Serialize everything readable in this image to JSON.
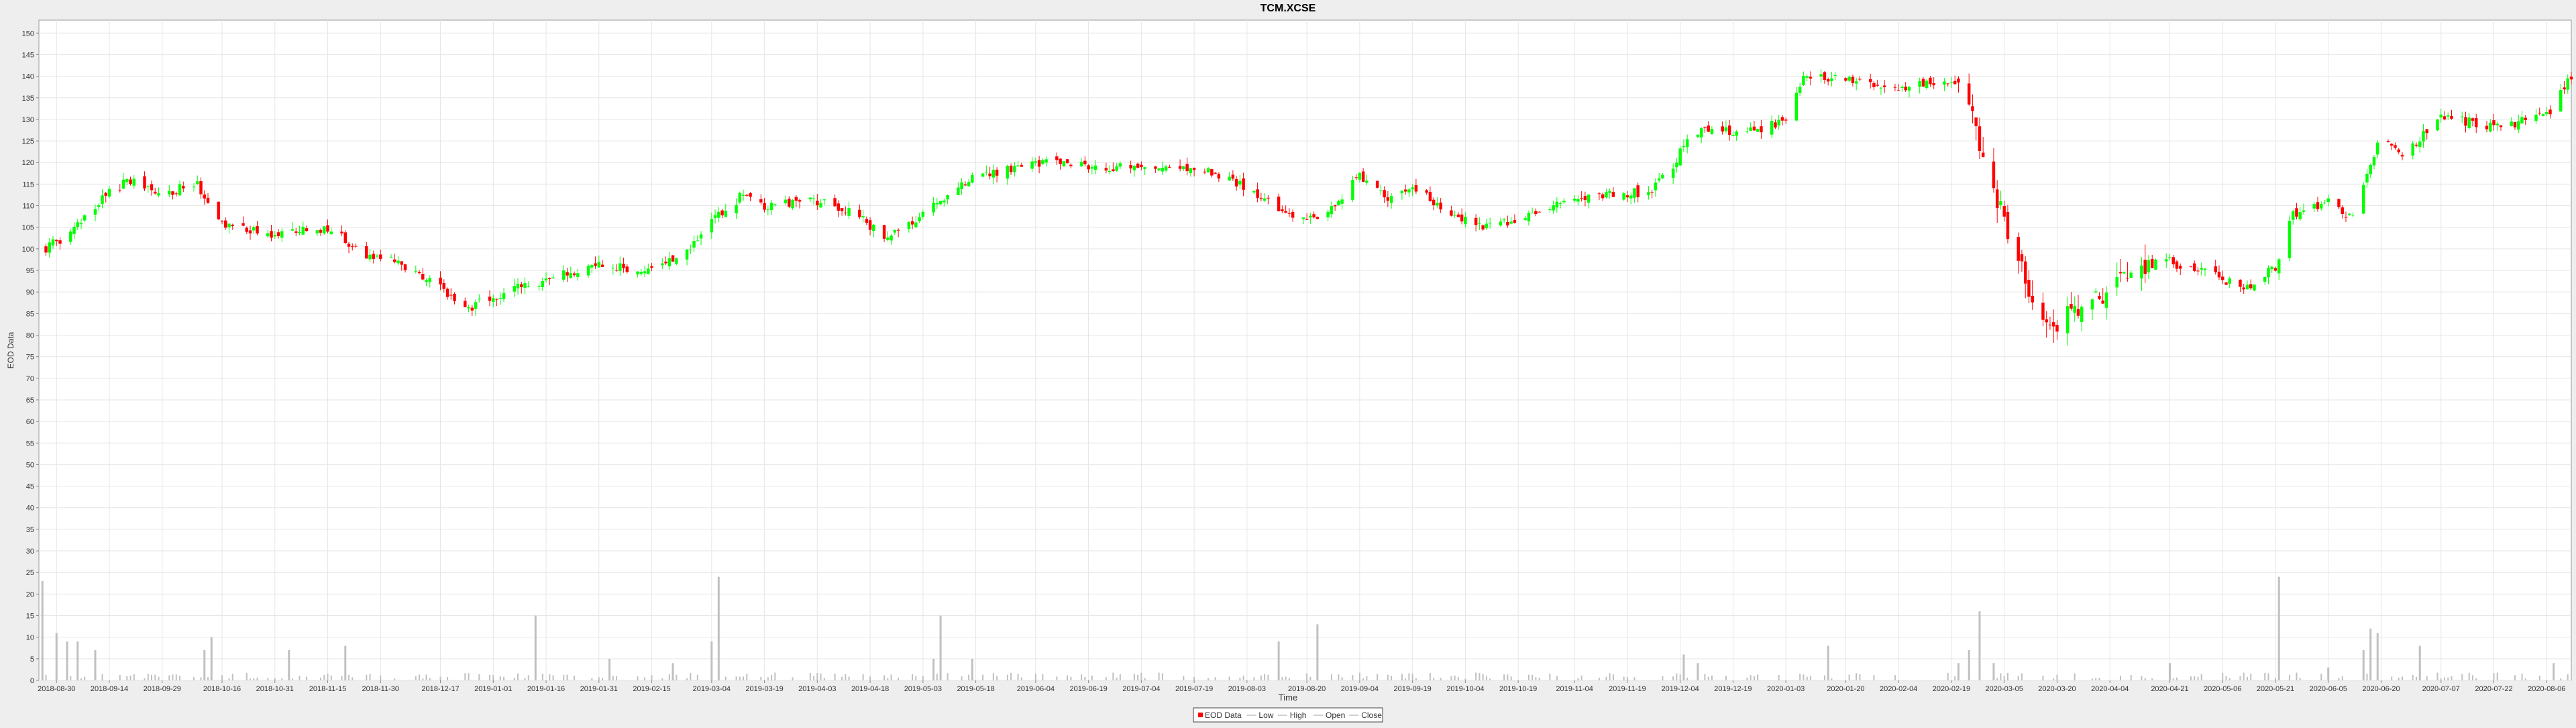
{
  "chart_data": {
    "type": "candlestick",
    "title": "TCM.XCSE",
    "xlabel": "Time",
    "ylabel": "EOD Data",
    "ylim": [
      0,
      153
    ],
    "yticks": [
      0,
      5,
      10,
      15,
      20,
      25,
      30,
      35,
      40,
      45,
      50,
      55,
      60,
      65,
      70,
      75,
      80,
      85,
      90,
      95,
      100,
      105,
      110,
      115,
      120,
      125,
      130,
      135,
      140,
      145,
      150
    ],
    "xrange": [
      "2018-08-25",
      "2020-08-13"
    ],
    "x_tick_labels": [
      "2018-08-30",
      "2018-09-14",
      "2018-09-29",
      "2018-10-16",
      "2018-10-31",
      "2018-11-15",
      "2018-11-30",
      "2018-12-17",
      "2019-01-01",
      "2019-01-16",
      "2019-01-31",
      "2019-02-15",
      "2019-03-04",
      "2019-03-19",
      "2019-04-03",
      "2019-04-18",
      "2019-05-03",
      "2019-05-18",
      "2019-06-04",
      "2019-06-19",
      "2019-07-04",
      "2019-07-19",
      "2019-08-03",
      "2019-08-20",
      "2019-09-04",
      "2019-09-19",
      "2019-10-04",
      "2019-10-19",
      "2019-11-04",
      "2019-11-19",
      "2019-12-04",
      "2019-12-19",
      "2020-01-03",
      "2020-01-20",
      "2020-02-04",
      "2020-02-19",
      "2020-03-05",
      "2020-03-20",
      "2020-04-04",
      "2020-04-21",
      "2020-05-06",
      "2020-05-21",
      "2020-06-05",
      "2020-06-20",
      "2020-07-07",
      "2020-07-22",
      "2020-08-06"
    ],
    "price_anchors": [
      {
        "date": "2018-08-27",
        "close": 100
      },
      {
        "date": "2018-09-03",
        "close": 104
      },
      {
        "date": "2018-09-12",
        "close": 112
      },
      {
        "date": "2018-09-20",
        "close": 116
      },
      {
        "date": "2018-09-29",
        "close": 113
      },
      {
        "date": "2018-10-09",
        "close": 115
      },
      {
        "date": "2018-10-16",
        "close": 106
      },
      {
        "date": "2018-10-31",
        "close": 103
      },
      {
        "date": "2018-11-15",
        "close": 105
      },
      {
        "date": "2018-11-25",
        "close": 99
      },
      {
        "date": "2018-12-05",
        "close": 97
      },
      {
        "date": "2018-12-17",
        "close": 91
      },
      {
        "date": "2018-12-24",
        "close": 86
      },
      {
        "date": "2019-01-04",
        "close": 90
      },
      {
        "date": "2019-01-16",
        "close": 93
      },
      {
        "date": "2019-01-31",
        "close": 96
      },
      {
        "date": "2019-02-15",
        "close": 95
      },
      {
        "date": "2019-02-25",
        "close": 100
      },
      {
        "date": "2019-03-04",
        "close": 106
      },
      {
        "date": "2019-03-12",
        "close": 112
      },
      {
        "date": "2019-03-19",
        "close": 110
      },
      {
        "date": "2019-04-03",
        "close": 111
      },
      {
        "date": "2019-04-14",
        "close": 108
      },
      {
        "date": "2019-04-22",
        "close": 103
      },
      {
        "date": "2019-05-03",
        "close": 108
      },
      {
        "date": "2019-05-13",
        "close": 115
      },
      {
        "date": "2019-05-25",
        "close": 118
      },
      {
        "date": "2019-06-04",
        "close": 120
      },
      {
        "date": "2019-06-19",
        "close": 119
      },
      {
        "date": "2019-07-04",
        "close": 119
      },
      {
        "date": "2019-07-19",
        "close": 119
      },
      {
        "date": "2019-08-03",
        "close": 114
      },
      {
        "date": "2019-08-15",
        "close": 108
      },
      {
        "date": "2019-08-25",
        "close": 107
      },
      {
        "date": "2019-09-04",
        "close": 117
      },
      {
        "date": "2019-09-12",
        "close": 112
      },
      {
        "date": "2019-09-19",
        "close": 115
      },
      {
        "date": "2019-09-28",
        "close": 109
      },
      {
        "date": "2019-10-08",
        "close": 105
      },
      {
        "date": "2019-10-19",
        "close": 107
      },
      {
        "date": "2019-11-01",
        "close": 111
      },
      {
        "date": "2019-11-15",
        "close": 113
      },
      {
        "date": "2019-11-25",
        "close": 113
      },
      {
        "date": "2019-12-01",
        "close": 118
      },
      {
        "date": "2019-12-06",
        "close": 125
      },
      {
        "date": "2019-12-12",
        "close": 128
      },
      {
        "date": "2019-12-19",
        "close": 127
      },
      {
        "date": "2019-12-27",
        "close": 128
      },
      {
        "date": "2020-01-03",
        "close": 130
      },
      {
        "date": "2020-01-08",
        "close": 140
      },
      {
        "date": "2020-01-20",
        "close": 139
      },
      {
        "date": "2020-02-04",
        "close": 137
      },
      {
        "date": "2020-02-14",
        "close": 139
      },
      {
        "date": "2020-02-21",
        "close": 138
      },
      {
        "date": "2020-02-26",
        "close": 128
      },
      {
        "date": "2020-03-02",
        "close": 114
      },
      {
        "date": "2020-03-06",
        "close": 104
      },
      {
        "date": "2020-03-12",
        "close": 90
      },
      {
        "date": "2020-03-18",
        "close": 81
      },
      {
        "date": "2020-03-25",
        "close": 86
      },
      {
        "date": "2020-04-04",
        "close": 90
      },
      {
        "date": "2020-04-12",
        "close": 96
      },
      {
        "date": "2020-04-21",
        "close": 97
      },
      {
        "date": "2020-05-06",
        "close": 93
      },
      {
        "date": "2020-05-14",
        "close": 91
      },
      {
        "date": "2020-05-21",
        "close": 96
      },
      {
        "date": "2020-05-26",
        "close": 108
      },
      {
        "date": "2020-06-05",
        "close": 111
      },
      {
        "date": "2020-06-12",
        "close": 107
      },
      {
        "date": "2020-06-20",
        "close": 127
      },
      {
        "date": "2020-06-26",
        "close": 121
      },
      {
        "date": "2020-07-07",
        "close": 131
      },
      {
        "date": "2020-07-22",
        "close": 128
      },
      {
        "date": "2020-08-06",
        "close": 131
      },
      {
        "date": "2020-08-13",
        "close": 140
      }
    ],
    "volume_spikes": [
      {
        "date": "2018-08-26",
        "value": 23
      },
      {
        "date": "2018-08-30",
        "value": 11
      },
      {
        "date": "2018-09-02",
        "value": 9
      },
      {
        "date": "2018-09-05",
        "value": 9
      },
      {
        "date": "2018-09-10",
        "value": 7
      },
      {
        "date": "2018-10-13",
        "value": 10
      },
      {
        "date": "2018-10-11",
        "value": 7
      },
      {
        "date": "2018-11-04",
        "value": 7
      },
      {
        "date": "2018-11-20",
        "value": 8
      },
      {
        "date": "2019-01-13",
        "value": 15
      },
      {
        "date": "2019-02-03",
        "value": 5
      },
      {
        "date": "2019-02-21",
        "value": 4
      },
      {
        "date": "2019-03-04",
        "value": 9
      },
      {
        "date": "2019-03-06",
        "value": 24
      },
      {
        "date": "2019-05-06",
        "value": 5
      },
      {
        "date": "2019-05-08",
        "value": 15
      },
      {
        "date": "2019-05-17",
        "value": 5
      },
      {
        "date": "2019-08-12",
        "value": 9
      },
      {
        "date": "2019-08-23",
        "value": 13
      },
      {
        "date": "2019-12-05",
        "value": 6
      },
      {
        "date": "2019-12-09",
        "value": 4
      },
      {
        "date": "2020-01-15",
        "value": 8
      },
      {
        "date": "2020-02-21",
        "value": 4
      },
      {
        "date": "2020-02-24",
        "value": 7
      },
      {
        "date": "2020-02-27",
        "value": 16
      },
      {
        "date": "2020-03-02",
        "value": 4
      },
      {
        "date": "2020-04-21",
        "value": 4
      },
      {
        "date": "2020-05-22",
        "value": 24
      },
      {
        "date": "2020-06-05",
        "value": 3
      },
      {
        "date": "2020-06-15",
        "value": 7
      },
      {
        "date": "2020-06-17",
        "value": 12
      },
      {
        "date": "2020-06-19",
        "value": 11
      },
      {
        "date": "2020-07-01",
        "value": 8
      },
      {
        "date": "2020-08-08",
        "value": 4
      }
    ],
    "legend": {
      "position": "bottom-center",
      "items": [
        {
          "label": "EOD Data",
          "color": "#ff0000",
          "marker": "box"
        },
        {
          "label": "Low",
          "color": "#c0c0c0",
          "marker": "line"
        },
        {
          "label": "High",
          "color": "#c0c0c0",
          "marker": "line"
        },
        {
          "label": "Open",
          "color": "#c0c0c0",
          "marker": "line"
        },
        {
          "label": "Close",
          "color": "#c0c0c0",
          "marker": "line"
        }
      ]
    },
    "colors": {
      "up": "#00ff00",
      "down": "#ff0000",
      "volume": "#c0c0c0",
      "plot_bg": "#ffffff",
      "page_bg": "#eeeeee",
      "grid": "#e6e6e6"
    },
    "grid": true
  }
}
